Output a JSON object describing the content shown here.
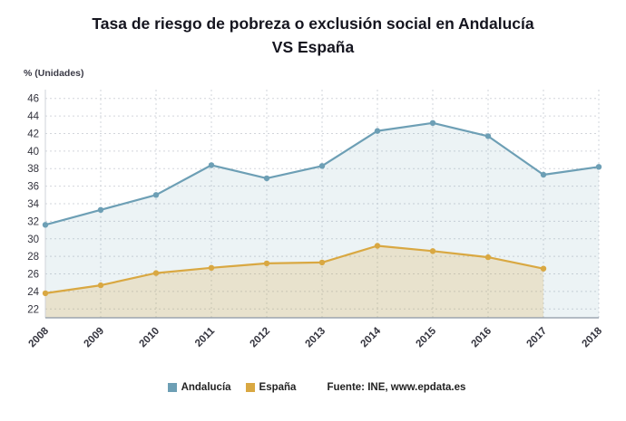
{
  "title": {
    "line1": "Tasa de riesgo de pobreza o exclusión social en Andalucía",
    "line2": "VS España"
  },
  "y_axis_label": "% (Unidades)",
  "legend": {
    "items": [
      {
        "label": "Andalucía",
        "color": "#6d9fb5"
      },
      {
        "label": "España",
        "color": "#d9a842"
      }
    ],
    "source": "Fuente: INE, www.epdata.es"
  },
  "chart_data": {
    "type": "line",
    "title": "Tasa de riesgo de pobreza o exclusión social en Andalucía VS España",
    "xlabel": "",
    "ylabel": "% (Unidades)",
    "categories": [
      "2008",
      "2009",
      "2010",
      "2011",
      "2012",
      "2013",
      "2014",
      "2015",
      "2016",
      "2017",
      "2018"
    ],
    "series": [
      {
        "name": "Andalucía",
        "color": "#6d9fb5",
        "values": [
          31.6,
          33.3,
          35.0,
          38.4,
          36.9,
          38.3,
          42.3,
          43.2,
          41.7,
          37.3,
          38.2
        ]
      },
      {
        "name": "España",
        "color": "#d9a842",
        "values": [
          23.8,
          24.7,
          26.1,
          26.7,
          27.2,
          27.3,
          29.2,
          28.6,
          27.9,
          26.6,
          null
        ]
      }
    ],
    "ylim": [
      21,
      47
    ],
    "y_ticks": [
      22,
      24,
      26,
      28,
      30,
      32,
      34,
      36,
      38,
      40,
      42,
      44,
      46
    ],
    "grid": true,
    "grid_style": "dotted",
    "area_fill": true,
    "marker": "circle",
    "legend_position": "bottom",
    "x_label_rotation": -45
  }
}
